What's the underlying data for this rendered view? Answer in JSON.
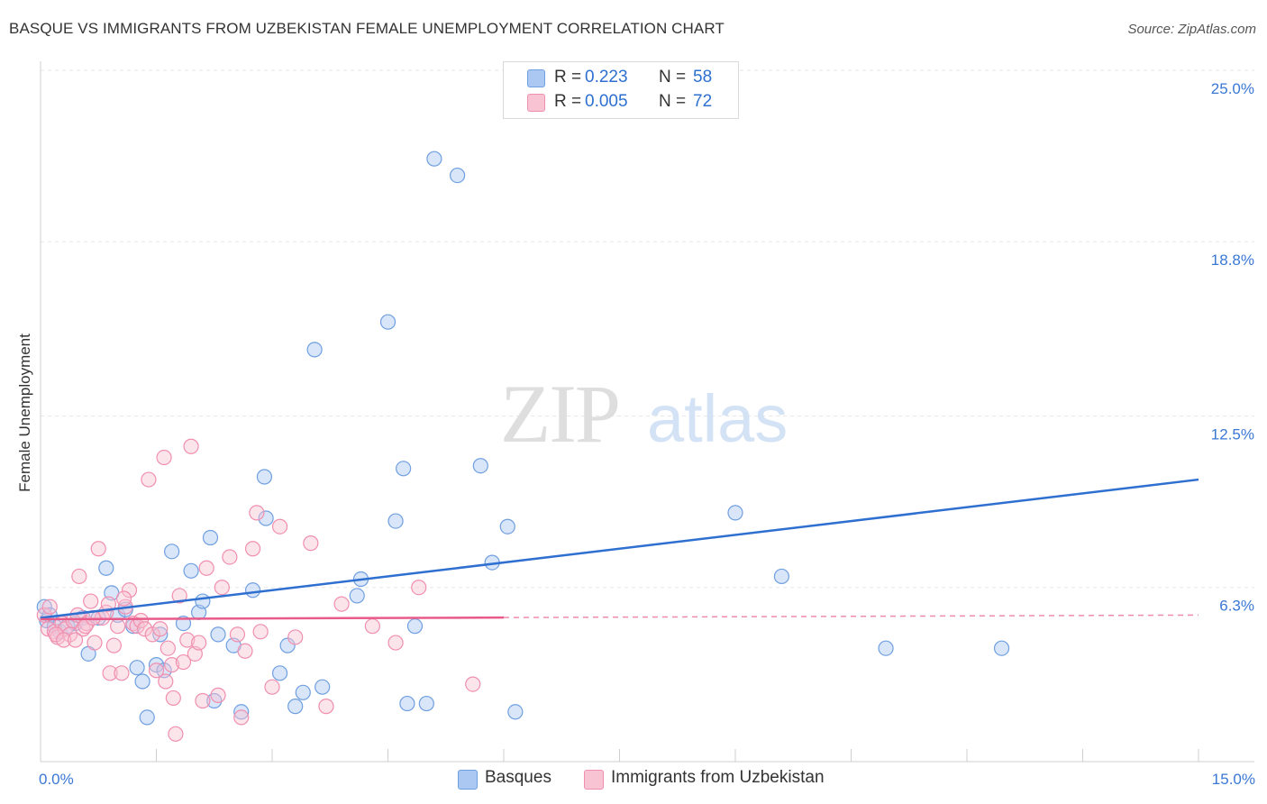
{
  "chart_data": {
    "type": "scatter",
    "title": "BASQUE VS IMMIGRANTS FROM UZBEKISTAN FEMALE UNEMPLOYMENT CORRELATION CHART",
    "source": "Source: ZipAtlas.com",
    "xlabel": "",
    "ylabel": "Female Unemployment",
    "xlim": [
      0,
      15
    ],
    "ylim": [
      0,
      25
    ],
    "x_tick_labels": [
      "0.0%",
      "15.0%"
    ],
    "y_ticks": [
      6.3,
      12.5,
      18.8,
      25.0
    ],
    "y_tick_labels": [
      "6.3%",
      "12.5%",
      "18.8%",
      "25.0%"
    ],
    "grid": true,
    "watermark": "ZIPatlas",
    "legend": [
      {
        "r_label": "R =",
        "r_value": "0.223",
        "n_label": "N =",
        "n_value": "58"
      },
      {
        "r_label": "R =",
        "r_value": "0.005",
        "n_label": "N =",
        "n_value": "72"
      }
    ],
    "series": [
      {
        "name": "Basques",
        "color": "#6f9fe0",
        "fill": "#aac8f2",
        "line_color": "#2e6fd0",
        "trend": {
          "x0": 0,
          "y0": 5.2,
          "x1": 15,
          "y1": 10.2,
          "solid_until": 15
        },
        "points": [
          [
            0.05,
            5.6
          ],
          [
            0.08,
            5.1
          ],
          [
            0.12,
            5.3
          ],
          [
            0.18,
            4.9
          ],
          [
            0.25,
            4.7
          ],
          [
            0.35,
            4.9
          ],
          [
            0.45,
            5.0
          ],
          [
            0.55,
            5.2
          ],
          [
            0.62,
            3.9
          ],
          [
            0.75,
            5.2
          ],
          [
            0.85,
            7.0
          ],
          [
            0.92,
            6.1
          ],
          [
            1.0,
            5.3
          ],
          [
            1.1,
            5.5
          ],
          [
            1.2,
            4.9
          ],
          [
            1.25,
            3.4
          ],
          [
            1.32,
            2.9
          ],
          [
            1.38,
            1.6
          ],
          [
            1.5,
            3.5
          ],
          [
            1.55,
            4.6
          ],
          [
            1.6,
            3.3
          ],
          [
            1.7,
            7.6
          ],
          [
            1.85,
            5.0
          ],
          [
            1.95,
            6.9
          ],
          [
            2.05,
            5.4
          ],
          [
            2.1,
            5.8
          ],
          [
            2.2,
            8.1
          ],
          [
            2.3,
            4.6
          ],
          [
            2.25,
            2.2
          ],
          [
            2.5,
            4.2
          ],
          [
            2.6,
            1.8
          ],
          [
            2.75,
            6.2
          ],
          [
            2.9,
            10.3
          ],
          [
            2.92,
            8.8
          ],
          [
            3.1,
            3.2
          ],
          [
            3.2,
            4.2
          ],
          [
            3.3,
            2.0
          ],
          [
            3.4,
            2.5
          ],
          [
            3.55,
            14.9
          ],
          [
            3.65,
            2.7
          ],
          [
            4.1,
            6.0
          ],
          [
            4.15,
            6.6
          ],
          [
            4.5,
            15.9
          ],
          [
            4.6,
            8.7
          ],
          [
            4.7,
            10.6
          ],
          [
            4.75,
            2.1
          ],
          [
            4.85,
            4.9
          ],
          [
            5.0,
            2.1
          ],
          [
            5.1,
            21.8
          ],
          [
            5.4,
            21.2
          ],
          [
            5.7,
            10.7
          ],
          [
            5.85,
            7.2
          ],
          [
            6.05,
            8.5
          ],
          [
            6.15,
            1.8
          ],
          [
            9.0,
            9.0
          ],
          [
            9.6,
            6.7
          ],
          [
            10.95,
            4.1
          ],
          [
            12.45,
            4.1
          ]
        ]
      },
      {
        "name": "Immigrants from Uzbekistan",
        "color": "#f08fb0",
        "fill": "#f8c3d3",
        "line_color": "#e85a8a",
        "trend": {
          "x0": 0,
          "y0": 5.15,
          "x1": 15,
          "y1": 5.3,
          "solid_until": 6.0
        },
        "points": [
          [
            0.05,
            5.3
          ],
          [
            0.1,
            4.8
          ],
          [
            0.12,
            5.6
          ],
          [
            0.18,
            4.7
          ],
          [
            0.22,
            4.5
          ],
          [
            0.28,
            5.0
          ],
          [
            0.32,
            4.8
          ],
          [
            0.38,
            4.6
          ],
          [
            0.42,
            5.1
          ],
          [
            0.48,
            5.3
          ],
          [
            0.5,
            6.7
          ],
          [
            0.55,
            4.8
          ],
          [
            0.6,
            5.0
          ],
          [
            0.65,
            5.8
          ],
          [
            0.7,
            4.3
          ],
          [
            0.75,
            7.7
          ],
          [
            0.8,
            5.2
          ],
          [
            0.85,
            5.4
          ],
          [
            0.9,
            3.2
          ],
          [
            0.95,
            4.2
          ],
          [
            1.0,
            4.9
          ],
          [
            1.05,
            3.2
          ],
          [
            1.1,
            5.6
          ],
          [
            1.15,
            6.2
          ],
          [
            1.2,
            5.0
          ],
          [
            1.25,
            4.9
          ],
          [
            1.3,
            5.1
          ],
          [
            1.35,
            4.8
          ],
          [
            1.4,
            10.2
          ],
          [
            1.45,
            4.6
          ],
          [
            1.5,
            3.3
          ],
          [
            1.55,
            4.8
          ],
          [
            1.6,
            11.0
          ],
          [
            1.62,
            2.9
          ],
          [
            1.65,
            4.1
          ],
          [
            1.7,
            3.5
          ],
          [
            1.72,
            2.3
          ],
          [
            1.75,
            1.0
          ],
          [
            1.8,
            6.0
          ],
          [
            1.85,
            3.6
          ],
          [
            1.9,
            4.4
          ],
          [
            1.95,
            11.4
          ],
          [
            2.0,
            3.9
          ],
          [
            2.05,
            4.3
          ],
          [
            2.1,
            2.2
          ],
          [
            2.15,
            7.0
          ],
          [
            2.3,
            2.4
          ],
          [
            2.35,
            6.3
          ],
          [
            2.45,
            7.4
          ],
          [
            2.55,
            4.6
          ],
          [
            2.6,
            1.6
          ],
          [
            2.65,
            4.0
          ],
          [
            2.75,
            7.7
          ],
          [
            2.8,
            9.0
          ],
          [
            2.85,
            4.7
          ],
          [
            3.0,
            2.7
          ],
          [
            3.1,
            8.5
          ],
          [
            3.3,
            4.5
          ],
          [
            3.5,
            7.9
          ],
          [
            3.7,
            2.0
          ],
          [
            3.9,
            5.7
          ],
          [
            4.3,
            4.9
          ],
          [
            4.6,
            4.3
          ],
          [
            4.9,
            6.3
          ],
          [
            5.6,
            2.8
          ],
          [
            0.2,
            4.6
          ],
          [
            0.3,
            4.4
          ],
          [
            0.45,
            4.4
          ],
          [
            0.58,
            4.9
          ],
          [
            0.68,
            5.2
          ],
          [
            0.88,
            5.7
          ],
          [
            1.08,
            5.9
          ]
        ]
      }
    ]
  },
  "bottom_legend": [
    {
      "label": "Basques",
      "fill": "#aac8f2",
      "stroke": "#6f9fe0"
    },
    {
      "label": "Immigrants from Uzbekistan",
      "fill": "#f8c3d3",
      "stroke": "#f08fb0"
    }
  ]
}
